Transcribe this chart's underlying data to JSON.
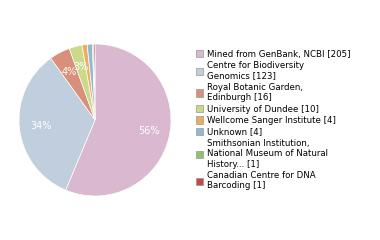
{
  "labels": [
    "Mined from GenBank, NCBI [205]",
    "Centre for Biodiversity\nGenomics [123]",
    "Royal Botanic Garden,\nEdinburgh [16]",
    "University of Dundee [10]",
    "Wellcome Sanger Institute [4]",
    "Unknown [4]",
    "Smithsonian Institution,\nNational Museum of Natural\nHistory... [1]",
    "Canadian Centre for DNA\nBarcoding [1]"
  ],
  "values": [
    205,
    123,
    16,
    10,
    4,
    4,
    1,
    1
  ],
  "colors": [
    "#d9b8d0",
    "#c0cede",
    "#d9907a",
    "#cdd98a",
    "#e8b060",
    "#92b8d4",
    "#90c070",
    "#cc4444"
  ],
  "startangle": 90,
  "legend_fontsize": 6.2,
  "pct_fontsize": 7.0,
  "figsize": [
    3.8,
    2.4
  ],
  "dpi": 100,
  "pct_color": "white"
}
